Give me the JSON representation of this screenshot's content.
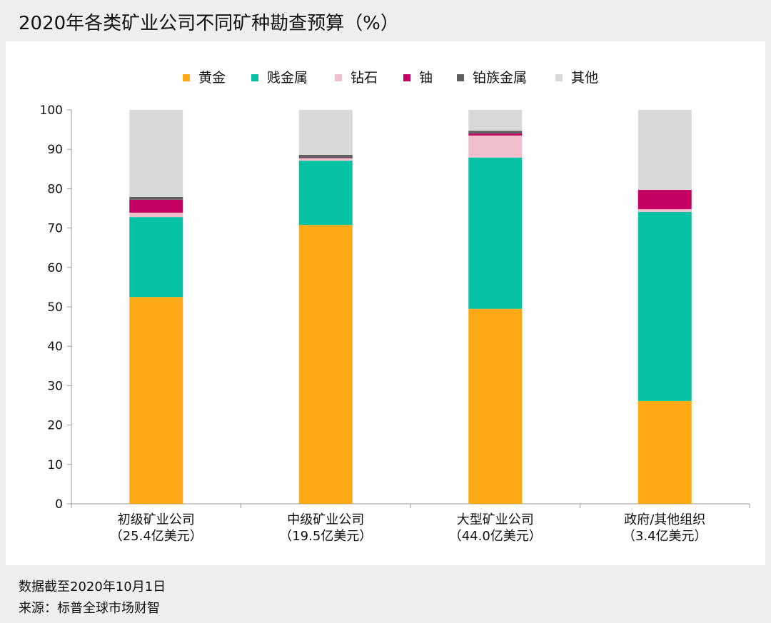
{
  "title": "2020年各类矿业公司不同矿种勘查预算（%）",
  "footer": {
    "note": "数据截至2020年10月1日",
    "source": "来源：标普全球市场财智"
  },
  "chart_data": {
    "type": "bar",
    "stacked": true,
    "title": "2020年各类矿业公司不同矿种勘查预算（%）",
    "categories": [
      [
        "初级矿业公司",
        "（25.4亿美元）"
      ],
      [
        "中级矿业公司",
        "（19.5亿美元）"
      ],
      [
        "大型矿业公司",
        "（44.0亿美元）"
      ],
      [
        "政府/其他组织",
        "（3.4亿美元）"
      ]
    ],
    "series": [
      {
        "name": "黄金",
        "color": "#ffa914",
        "values": [
          52.5,
          70.8,
          49.5,
          26.1
        ]
      },
      {
        "name": "贱金属",
        "color": "#06c2a5",
        "values": [
          20.3,
          16.3,
          38.4,
          48.0
        ]
      },
      {
        "name": "钻石",
        "color": "#f0bfcc",
        "values": [
          1.1,
          0.6,
          5.6,
          0.7
        ]
      },
      {
        "name": "铀",
        "color": "#c40062",
        "values": [
          3.3,
          0.1,
          0.5,
          4.9
        ]
      },
      {
        "name": "铂族金属",
        "color": "#5f5f5f",
        "values": [
          0.7,
          0.8,
          0.7,
          0.0
        ]
      },
      {
        "name": "其他",
        "color": "#d9d9d9",
        "values": [
          22.1,
          11.4,
          5.3,
          20.3
        ]
      }
    ],
    "ylim": [
      0,
      100
    ],
    "yticks": [
      "0",
      "10",
      "20",
      "30",
      "40",
      "50",
      "60",
      "70",
      "80",
      "90",
      "100"
    ],
    "legend": "top",
    "grid": false
  }
}
